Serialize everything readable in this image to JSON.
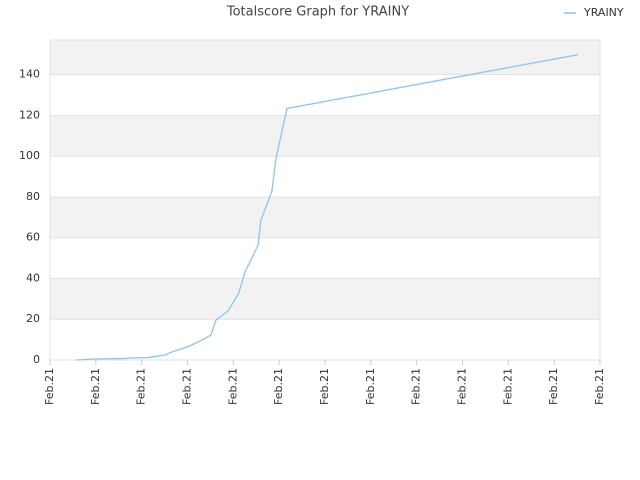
{
  "chart_data": {
    "type": "line",
    "title": "Totalscore Graph for YRAINY",
    "x": [
      0.57,
      0.98,
      1.64,
      1.7,
      2.14,
      2.51,
      2.73,
      3.01,
      3.27,
      3.51,
      3.62,
      3.88,
      4.12,
      4.25,
      4.54,
      4.6,
      4.84,
      4.93,
      5.17,
      11.52
    ],
    "series": [
      {
        "name": "YRAINY",
        "color": "#90c4ec",
        "values": [
          0,
          0.5,
          0.7,
          1,
          1.2,
          2.5,
          4.5,
          6.5,
          9.3,
          12.2,
          19.6,
          24,
          32.8,
          43,
          56.3,
          68.5,
          82.7,
          98.9,
          123.4,
          149.8
        ]
      }
    ],
    "xlim": [
      0,
      12
    ],
    "xticks": [
      {
        "value": 0,
        "label": "Feb.21"
      },
      {
        "value": 1,
        "label": "Feb.21"
      },
      {
        "value": 2,
        "label": "Feb.21"
      },
      {
        "value": 3,
        "label": "Feb.21"
      },
      {
        "value": 4,
        "label": "Feb.21"
      },
      {
        "value": 5,
        "label": "Feb.21"
      },
      {
        "value": 6,
        "label": "Feb.21"
      },
      {
        "value": 7,
        "label": "Feb.21"
      },
      {
        "value": 8,
        "label": "Feb.21"
      },
      {
        "value": 9,
        "label": "Feb.21"
      },
      {
        "value": 10,
        "label": "Feb.21"
      },
      {
        "value": 11,
        "label": "Feb.21"
      },
      {
        "value": 12,
        "label": "Feb.21"
      }
    ],
    "ylim": [
      0,
      157
    ],
    "yticks": [
      0,
      20,
      40,
      60,
      80,
      100,
      120,
      140
    ],
    "grid": true,
    "legend": "top-right"
  }
}
